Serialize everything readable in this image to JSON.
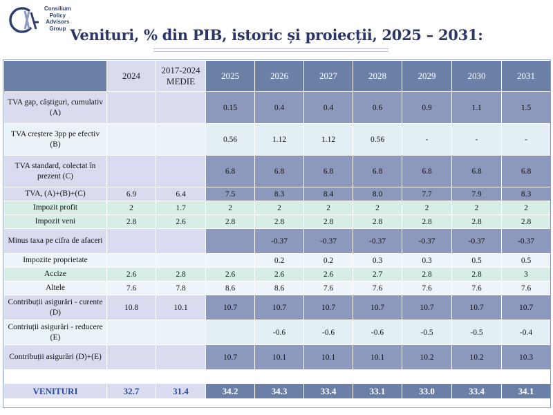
{
  "logo": {
    "initials": "CPA",
    "lines": [
      "Consilium",
      "Policy",
      "Advisors",
      "Group"
    ]
  },
  "title": "Venituri, % din PIB, istoric și proiecții, 2025 – 2031:",
  "table": {
    "columns": [
      "2024",
      "2017-2024 MEDIE",
      "2025",
      "2026",
      "2027",
      "2028",
      "2029",
      "2030",
      "2031"
    ],
    "rows": [
      {
        "label": "TVA gap, câștiguri, cumulativ (A)",
        "values": [
          "",
          "",
          "0.15",
          "0.4",
          "0.4",
          "0.6",
          "0.9",
          "1.1",
          "1.5"
        ]
      },
      {
        "label": "TVA creștere 3pp pe efectiv (B)",
        "values": [
          "",
          "",
          "0.56",
          "1.12",
          "1.12",
          "0.56",
          "-",
          "-",
          "-"
        ]
      },
      {
        "label": "TVA standard, colectat în prezent (C)",
        "values": [
          "",
          "",
          "6.8",
          "6.8",
          "6.8",
          "6.8",
          "6.8",
          "6.8",
          "6.8"
        ]
      },
      {
        "label": "TVA, (A)+(B)+(C)",
        "values": [
          "6.9",
          "6.4",
          "7.5",
          "8.3",
          "8.4",
          "8.0",
          "7.7",
          "7.9",
          "8.3"
        ]
      },
      {
        "label": "Impozit profit",
        "values": [
          "2",
          "1.7",
          "2",
          "2",
          "2",
          "2",
          "2",
          "2",
          "2"
        ]
      },
      {
        "label": "Impozit veni",
        "values": [
          "2.8",
          "2.6",
          "2.8",
          "2.8",
          "2.8",
          "2.8",
          "2.8",
          "2.8",
          "2.8"
        ]
      },
      {
        "label": "Minus taxa pe cifra de afaceri",
        "values": [
          "",
          "",
          "",
          "-0.37",
          "-0.37",
          "-0.37",
          "-0.37",
          "-0.37",
          "-0.37"
        ]
      },
      {
        "label": "Impozite proprietate",
        "values": [
          "",
          "",
          "",
          "0.2",
          "0.2",
          "0.3",
          "0.3",
          "0.5",
          "0.5"
        ]
      },
      {
        "label": "Accize",
        "values": [
          "2.6",
          "2.8",
          "2.6",
          "2.6",
          "2.6",
          "2.7",
          "2.8",
          "2.8",
          "3"
        ]
      },
      {
        "label": "Altele",
        "values": [
          "7.6",
          "7.8",
          "8.6",
          "8.6",
          "7.6",
          "7.6",
          "7.6",
          "7.6",
          "7.6"
        ]
      },
      {
        "label": "Contribuții asigurări - curente (D)",
        "values": [
          "10.8",
          "10.1",
          "10.7",
          "10.7",
          "10.7",
          "10.7",
          "10.7",
          "10.7",
          "10.7"
        ]
      },
      {
        "label": "Contriuții asigurări - reducere (E)",
        "values": [
          "",
          "",
          "",
          "-0.6",
          "-0.6",
          "-0.6",
          "-0.5",
          "-0.5",
          "-0.4"
        ]
      },
      {
        "label": "Contribuții asigurări (D)+(E)",
        "values": [
          "",
          "",
          "10.7",
          "10.1",
          "10.1",
          "10.1",
          "10.2",
          "10.2",
          "10.3"
        ]
      }
    ],
    "total": {
      "label": "VENITURI",
      "values": [
        "32.7",
        "31.4",
        "34.2",
        "34.3",
        "33.4",
        "33.1",
        "33.0",
        "33.4",
        "34.1"
      ]
    }
  }
}
